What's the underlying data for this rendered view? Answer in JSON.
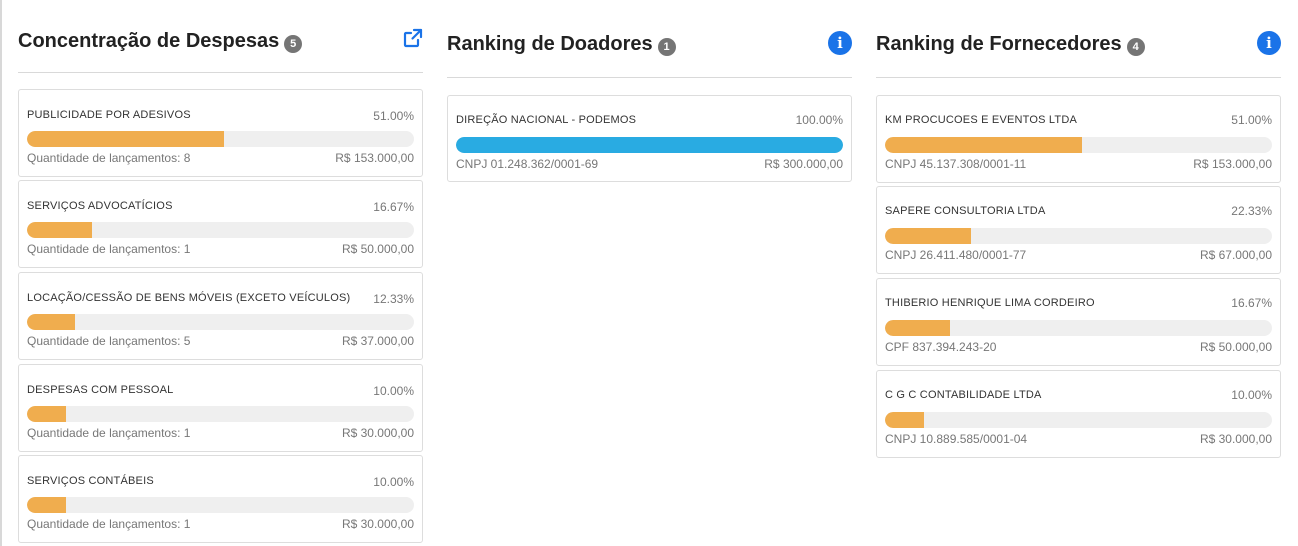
{
  "colors": {
    "orange_bar": "#f0ad4e",
    "blue_bar": "#29abe2",
    "info_blue": "#1a73e8",
    "badge_gray": "#757575"
  },
  "despesas": {
    "title": "Concentração de Despesas",
    "count": "5",
    "icon": "external-link-icon",
    "items": [
      {
        "name": "PUBLICIDADE POR ADESIVOS",
        "percent": "51.00%",
        "fraction": 0.51,
        "sub": "Quantidade de lançamentos: 8",
        "value": "R$ 153.000,00"
      },
      {
        "name": "SERVIÇOS ADVOCATÍCIOS",
        "percent": "16.67%",
        "fraction": 0.1667,
        "sub": "Quantidade de lançamentos: 1",
        "value": "R$ 50.000,00"
      },
      {
        "name": "LOCAÇÃO/CESSÃO DE BENS MÓVEIS (EXCETO VEÍCULOS)",
        "percent": "12.33%",
        "fraction": 0.1233,
        "sub": "Quantidade de lançamentos: 5",
        "value": "R$ 37.000,00"
      },
      {
        "name": "DESPESAS COM PESSOAL",
        "percent": "10.00%",
        "fraction": 0.1,
        "sub": "Quantidade de lançamentos: 1",
        "value": "R$ 30.000,00"
      },
      {
        "name": "SERVIÇOS CONTÁBEIS",
        "percent": "10.00%",
        "fraction": 0.1,
        "sub": "Quantidade de lançamentos: 1",
        "value": "R$ 30.000,00"
      }
    ]
  },
  "doadores": {
    "title": "Ranking de Doadores",
    "count": "1",
    "icon": "info-icon",
    "items": [
      {
        "name": "DIREÇÃO NACIONAL - PODEMOS",
        "percent": "100.00%",
        "fraction": 1.0,
        "sub": "CNPJ 01.248.362/0001-69",
        "value": "R$ 300.000,00"
      }
    ]
  },
  "fornecedores": {
    "title": "Ranking de Fornecedores",
    "count": "4",
    "icon": "info-icon",
    "items": [
      {
        "name": "KM PROCUCOES E EVENTOS LTDA",
        "percent": "51.00%",
        "fraction": 0.51,
        "sub": "CNPJ 45.137.308/0001-11",
        "value": "R$ 153.000,00"
      },
      {
        "name": "SAPERE CONSULTORIA LTDA",
        "percent": "22.33%",
        "fraction": 0.2233,
        "sub": "CNPJ 26.411.480/0001-77",
        "value": "R$ 67.000,00"
      },
      {
        "name": "THIBERIO HENRIQUE LIMA CORDEIRO",
        "percent": "16.67%",
        "fraction": 0.1667,
        "sub": "CPF 837.394.243-20",
        "value": "R$ 50.000,00"
      },
      {
        "name": "C G C CONTABILIDADE LTDA",
        "percent": "10.00%",
        "fraction": 0.1,
        "sub": "CNPJ 10.889.585/0001-04",
        "value": "R$ 30.000,00"
      }
    ]
  }
}
